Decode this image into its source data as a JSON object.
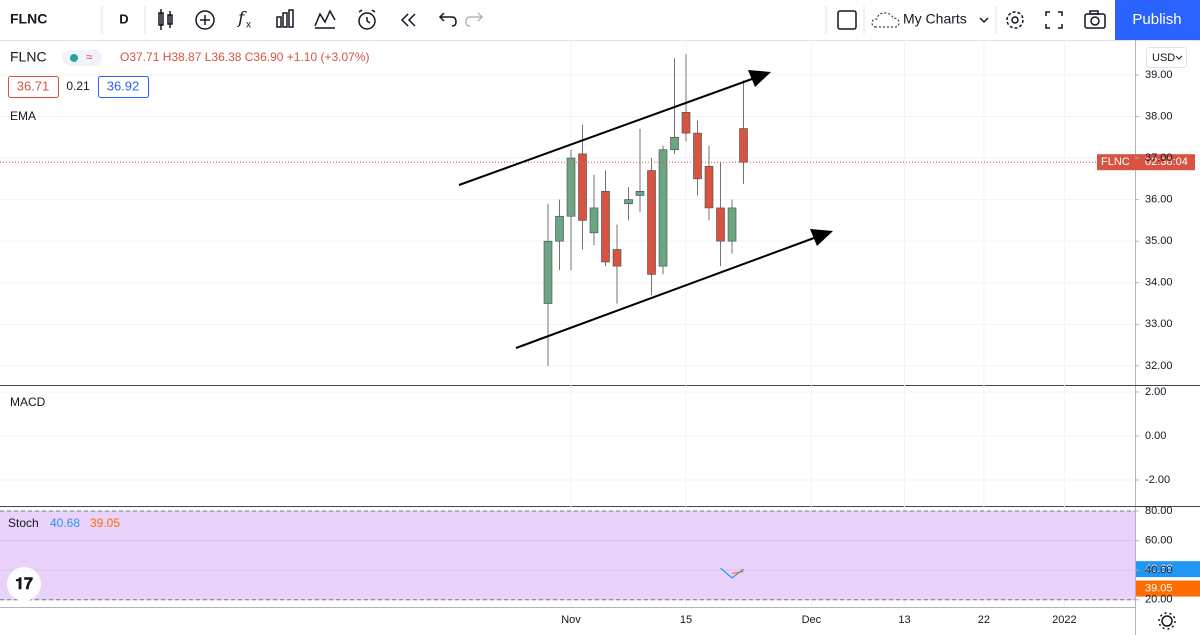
{
  "toolbar": {
    "symbol": "FLNC",
    "interval": "D",
    "layout": "My Charts",
    "publish": "Publish"
  },
  "legend": {
    "symbol": "FLNC",
    "ohlc": "O37.71 H38.87 L36.38 C36.90 +1.10 (+3.07%)",
    "bid": "36.71",
    "spread": "0.21",
    "ask": "36.92"
  },
  "currency": "USD",
  "last_price_label": {
    "symbol": "FLNC",
    "countdown": "02:38:04"
  },
  "chart_data": [
    {
      "type": "candlestick",
      "indicator": "EMA",
      "x": [
        0,
        1,
        2,
        3,
        4,
        5,
        6,
        7,
        8,
        9,
        10,
        11,
        12,
        13,
        14,
        15,
        16,
        17
      ],
      "open": [
        33.5,
        35.0,
        35.6,
        37.1,
        35.2,
        36.2,
        34.8,
        35.9,
        36.1,
        36.7,
        34.4,
        37.2,
        38.1,
        37.6,
        36.8,
        35.8,
        35.0,
        37.71
      ],
      "high": [
        35.9,
        36.0,
        37.2,
        37.8,
        36.6,
        36.7,
        35.4,
        36.3,
        37.7,
        37.0,
        37.3,
        39.4,
        39.5,
        37.9,
        37.3,
        36.9,
        36.0,
        38.87
      ],
      "low": [
        32.0,
        34.3,
        34.3,
        34.8,
        34.9,
        34.4,
        33.5,
        35.5,
        35.7,
        33.7,
        34.2,
        37.1,
        37.4,
        36.1,
        35.5,
        34.4,
        34.7,
        36.38
      ],
      "close": [
        35.0,
        35.6,
        37.0,
        35.5,
        35.8,
        34.5,
        34.4,
        36.0,
        36.2,
        34.2,
        37.2,
        37.5,
        37.6,
        36.5,
        35.8,
        35.0,
        35.8,
        36.9
      ],
      "up_color": "#6ba583",
      "down_color": "#d75442",
      "xlim": [
        -47.65,
        51.04
      ],
      "xticks": [
        {
          "value": 2,
          "label": "Nov"
        },
        {
          "value": 12,
          "label": "15"
        },
        {
          "value": 22.9,
          "label": "Dec"
        },
        {
          "value": 31,
          "label": "13"
        },
        {
          "value": 37.9,
          "label": "22"
        },
        {
          "value": 44.9,
          "label": "2022"
        }
      ],
      "ylim": [
        31.54,
        39.84
      ],
      "yticks": [
        {
          "value": 32,
          "label": "32.00"
        },
        {
          "value": 33,
          "label": "33.00"
        },
        {
          "value": 34,
          "label": "34.00"
        },
        {
          "value": 35,
          "label": "35.00"
        },
        {
          "value": 36,
          "label": "36.00"
        },
        {
          "value": 37,
          "label": "37.00"
        },
        {
          "value": 38,
          "label": "38.00"
        },
        {
          "value": 39,
          "label": "39.00"
        }
      ],
      "grid": true
    },
    {
      "type": "macd",
      "title": "MACD",
      "ylim": [
        -3.18,
        2.27
      ],
      "yticks": [
        {
          "value": 2,
          "label": "2.00"
        },
        {
          "value": 0,
          "label": "0.00"
        },
        {
          "value": -2,
          "label": "-2.00"
        }
      ],
      "grid": true
    },
    {
      "type": "line",
      "title": "Stoch",
      "x": [
        0,
        1,
        2,
        3,
        4,
        5,
        6,
        7,
        8,
        9,
        10,
        11,
        12,
        13,
        14,
        15,
        16,
        17
      ],
      "xlim": [
        -47.65,
        51.04
      ],
      "series": [
        {
          "color": "#2196f3",
          "values": [
            null,
            null,
            null,
            null,
            null,
            null,
            null,
            null,
            null,
            null,
            null,
            null,
            null,
            null,
            null,
            41.4,
            34.7,
            40.68
          ]
        },
        {
          "color": "#ff6d00",
          "values": [
            null,
            null,
            null,
            null,
            null,
            null,
            null,
            null,
            null,
            null,
            null,
            null,
            null,
            null,
            null,
            null,
            37.8,
            39.05
          ]
        }
      ],
      "ylim": [
        15.1,
        82.7
      ],
      "yticks": [
        {
          "value": 20,
          "label": "20.00"
        },
        {
          "value": 40,
          "label": "40.00"
        },
        {
          "value": 60,
          "label": "60.00"
        },
        {
          "value": 80,
          "label": "80.00"
        }
      ],
      "band_color": "#ead3fb",
      "grid": true
    }
  ]
}
